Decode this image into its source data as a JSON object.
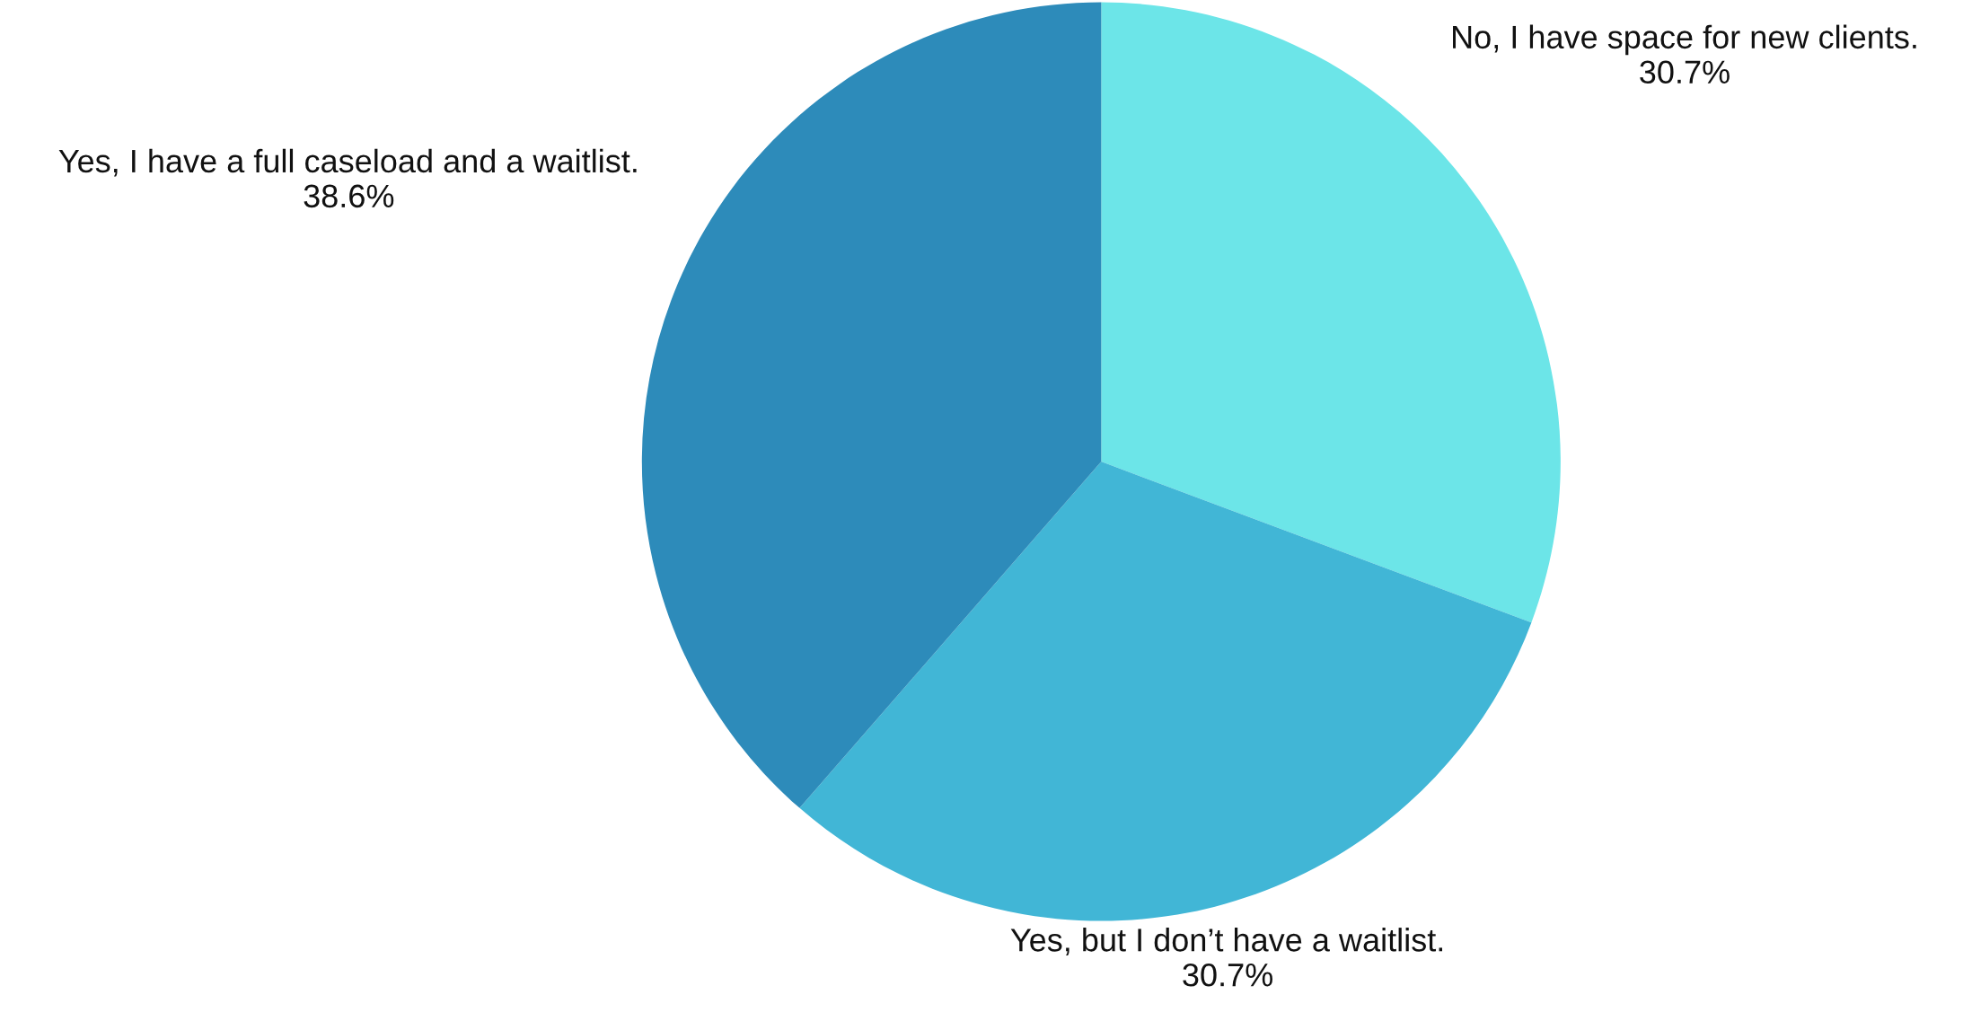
{
  "chart_data": {
    "type": "pie",
    "categories": [
      "No, I have space for new clients.",
      "Yes, but I don’t have a waitlist.",
      "Yes, I have a full caseload and a waitlist."
    ],
    "values": [
      30.7,
      30.7,
      38.6
    ],
    "value_labels": [
      "30.7%",
      "30.7%",
      "38.6%"
    ],
    "colors": [
      "#6ce5e8",
      "#41b6d6",
      "#2d8bba"
    ],
    "legend": false
  }
}
